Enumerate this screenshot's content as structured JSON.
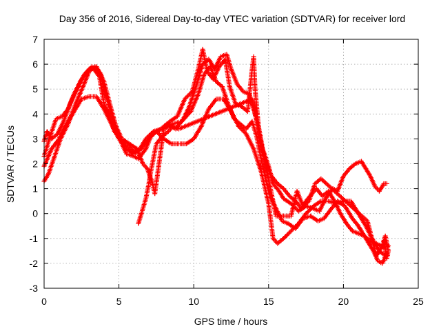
{
  "chart_data": {
    "type": "scatter",
    "title": "Day 356 of 2016, Sidereal Day-to-day VTEC variation (SDTVAR) for receiver lord",
    "xlabel": "GPS time / hours",
    "ylabel": "SDTVAR / TECUs",
    "xlim": [
      0,
      25
    ],
    "ylim": [
      -3,
      7
    ],
    "xticks": [
      0,
      5,
      10,
      15,
      20,
      25
    ],
    "yticks": [
      -3,
      -2,
      -1,
      0,
      1,
      2,
      3,
      4,
      5,
      6,
      7
    ],
    "grid": true,
    "marker": "plus",
    "color": "#ff0000",
    "series": [
      {
        "name": "track-1",
        "points": [
          [
            0.0,
            1.9
          ],
          [
            0.5,
            2.6
          ],
          [
            1.0,
            3.0
          ],
          [
            1.5,
            3.6
          ],
          [
            2.0,
            4.1
          ],
          [
            2.5,
            4.6
          ],
          [
            3.0,
            4.7
          ],
          [
            3.5,
            4.7
          ],
          [
            4.0,
            4.2
          ],
          [
            4.5,
            3.6
          ],
          [
            5.0,
            3.0
          ],
          [
            5.5,
            2.6
          ],
          [
            6.0,
            2.4
          ],
          [
            6.5,
            2.6
          ],
          [
            7.0,
            3.0
          ],
          [
            7.5,
            3.3
          ],
          [
            8.0,
            3.0
          ],
          [
            8.5,
            2.8
          ],
          [
            9.0,
            2.8
          ],
          [
            9.5,
            2.8
          ],
          [
            10.0,
            3.0
          ],
          [
            10.5,
            3.5
          ],
          [
            11.0,
            4.2
          ],
          [
            11.5,
            4.6
          ],
          [
            12.0,
            4.6
          ],
          [
            12.5,
            4.1
          ],
          [
            13.0,
            3.5
          ],
          [
            13.5,
            3.2
          ],
          [
            14.0,
            2.6
          ],
          [
            14.5,
            1.7
          ],
          [
            15.0,
            0.4
          ],
          [
            15.3,
            -1.0
          ],
          [
            15.6,
            -1.2
          ],
          [
            16.0,
            -1.0
          ],
          [
            16.5,
            -0.7
          ],
          [
            17.0,
            -0.4
          ],
          [
            17.5,
            0.0
          ],
          [
            18.0,
            0.3
          ],
          [
            18.5,
            0.5
          ],
          [
            19.0,
            0.5
          ],
          [
            19.5,
            0.4
          ],
          [
            20.0,
            0.5
          ],
          [
            20.5,
            0.5
          ],
          [
            21.0,
            0.0
          ],
          [
            21.5,
            -0.5
          ],
          [
            22.0,
            -1.1
          ],
          [
            22.4,
            -1.5
          ],
          [
            22.8,
            -1.7
          ]
        ]
      },
      {
        "name": "track-2",
        "points": [
          [
            0.0,
            2.3
          ],
          [
            0.4,
            3.1
          ],
          [
            0.8,
            3.8
          ],
          [
            1.2,
            3.9
          ],
          [
            1.6,
            4.2
          ],
          [
            2.0,
            4.8
          ],
          [
            2.5,
            5.4
          ],
          [
            3.0,
            5.8
          ],
          [
            3.5,
            5.9
          ],
          [
            4.0,
            5.3
          ],
          [
            4.3,
            4.6
          ],
          [
            4.8,
            3.5
          ],
          [
            5.2,
            2.8
          ],
          [
            5.5,
            2.4
          ],
          [
            6.0,
            2.3
          ],
          [
            6.3,
            2.2
          ],
          [
            6.8,
            2.6
          ],
          [
            7.2,
            3.2
          ],
          [
            7.8,
            3.4
          ],
          [
            8.2,
            3.6
          ],
          [
            8.8,
            3.4
          ],
          [
            9.3,
            3.8
          ],
          [
            9.7,
            4.3
          ],
          [
            10.2,
            5.2
          ],
          [
            10.6,
            6.0
          ],
          [
            11.0,
            6.2
          ],
          [
            11.4,
            5.8
          ],
          [
            11.8,
            6.3
          ],
          [
            12.2,
            6.4
          ],
          [
            12.5,
            5.8
          ],
          [
            12.9,
            5.2
          ],
          [
            13.3,
            4.9
          ],
          [
            13.7,
            4.8
          ],
          [
            14.0,
            4.2
          ],
          [
            14.3,
            3.6
          ],
          [
            14.6,
            2.6
          ],
          [
            15.0,
            1.9
          ],
          [
            15.3,
            1.2
          ],
          [
            15.7,
            0.9
          ],
          [
            16.0,
            0.6
          ],
          [
            16.5,
            0.4
          ],
          [
            17.0,
            0.1
          ],
          [
            17.5,
            0.3
          ],
          [
            18.0,
            0.2
          ],
          [
            18.4,
            0.1
          ],
          [
            18.8,
            0.6
          ],
          [
            19.3,
            1.0
          ],
          [
            19.6,
            0.9
          ],
          [
            20.0,
            1.5
          ],
          [
            20.4,
            1.8
          ],
          [
            20.8,
            2.0
          ],
          [
            21.2,
            2.1
          ],
          [
            21.5,
            1.8
          ],
          [
            21.8,
            1.5
          ],
          [
            22.1,
            1.1
          ],
          [
            22.4,
            0.9
          ],
          [
            22.7,
            1.2
          ],
          [
            22.9,
            1.2
          ]
        ]
      },
      {
        "name": "track-3",
        "points": [
          [
            0.0,
            1.3
          ],
          [
            0.3,
            1.6
          ],
          [
            0.7,
            2.3
          ],
          [
            1.1,
            3.0
          ],
          [
            1.6,
            3.6
          ],
          [
            2.1,
            4.4
          ],
          [
            2.6,
            5.1
          ],
          [
            3.0,
            5.7
          ],
          [
            3.4,
            5.9
          ],
          [
            3.8,
            5.6
          ],
          [
            4.1,
            4.8
          ],
          [
            4.4,
            4.2
          ],
          [
            4.8,
            3.5
          ],
          [
            5.2,
            3.0
          ],
          [
            5.7,
            2.8
          ],
          [
            6.2,
            2.6
          ],
          [
            6.6,
            2.0
          ],
          [
            6.9,
            1.8
          ],
          [
            7.2,
            1.3
          ],
          [
            7.4,
            0.8
          ],
          [
            8.0,
            3.4
          ],
          [
            8.6,
            3.6
          ],
          [
            9.2,
            3.7
          ],
          [
            9.8,
            4.1
          ],
          [
            10.3,
            4.8
          ],
          [
            10.7,
            5.6
          ],
          [
            11.1,
            5.9
          ],
          [
            11.5,
            5.3
          ],
          [
            11.9,
            5.1
          ],
          [
            12.3,
            4.4
          ],
          [
            12.7,
            3.8
          ],
          [
            13.1,
            3.6
          ],
          [
            13.5,
            3.4
          ],
          [
            13.9,
            3.7
          ],
          [
            14.2,
            3.1
          ],
          [
            14.5,
            2.2
          ],
          [
            14.8,
            1.4
          ],
          [
            15.1,
            0.7
          ],
          [
            15.5,
            0.2
          ],
          [
            15.9,
            -0.3
          ],
          [
            16.3,
            -0.4
          ],
          [
            16.8,
            -0.6
          ],
          [
            17.3,
            -0.2
          ],
          [
            17.8,
            -0.1
          ],
          [
            18.3,
            -0.3
          ],
          [
            18.7,
            -0.2
          ],
          [
            19.2,
            0.2
          ],
          [
            19.6,
            0.5
          ],
          [
            20.1,
            0.3
          ],
          [
            20.6,
            -0.2
          ],
          [
            21.0,
            -0.5
          ],
          [
            21.5,
            -1.0
          ],
          [
            22.0,
            -1.5
          ],
          [
            22.3,
            -1.9
          ],
          [
            22.6,
            -2.0
          ],
          [
            22.9,
            -1.6
          ]
        ]
      },
      {
        "name": "track-4",
        "points": [
          [
            0.0,
            2.9
          ],
          [
            0.2,
            3.3
          ],
          [
            0.5,
            3.0
          ],
          [
            0.9,
            3.2
          ],
          [
            1.3,
            3.7
          ],
          [
            1.8,
            4.5
          ],
          [
            2.2,
            5.0
          ],
          [
            2.7,
            5.6
          ],
          [
            3.2,
            5.9
          ],
          [
            3.7,
            5.5
          ],
          [
            4.0,
            4.4
          ],
          [
            4.3,
            4.0
          ],
          [
            4.7,
            3.3
          ],
          [
            5.1,
            3.0
          ],
          [
            5.6,
            2.7
          ],
          [
            6.0,
            2.5
          ],
          [
            6.4,
            2.6
          ],
          [
            6.8,
            3.0
          ],
          [
            7.3,
            3.3
          ],
          [
            7.9,
            3.4
          ],
          [
            8.4,
            3.7
          ],
          [
            8.9,
            3.9
          ],
          [
            9.4,
            4.6
          ],
          [
            9.9,
            4.9
          ],
          [
            10.3,
            5.8
          ],
          [
            10.6,
            6.6
          ],
          [
            10.9,
            5.7
          ],
          [
            11.3,
            5.4
          ],
          [
            11.7,
            5.9
          ],
          [
            12.1,
            6.2
          ],
          [
            12.4,
            5.1
          ],
          [
            12.8,
            4.4
          ],
          [
            13.2,
            4.3
          ],
          [
            13.6,
            4.1
          ],
          [
            13.9,
            5.8
          ],
          [
            14.0,
            6.3
          ],
          [
            14.1,
            5.0
          ],
          [
            14.4,
            3.0
          ],
          [
            14.8,
            2.1
          ],
          [
            15.2,
            1.5
          ],
          [
            15.6,
            1.2
          ],
          [
            16.0,
            1.0
          ],
          [
            16.4,
            0.7
          ],
          [
            16.8,
            0.5
          ],
          [
            17.2,
            0.2
          ],
          [
            17.5,
            0.5
          ],
          [
            17.9,
            0.8
          ],
          [
            18.2,
            1.0
          ],
          [
            18.6,
            0.7
          ],
          [
            19.0,
            0.9
          ],
          [
            19.4,
            0.5
          ],
          [
            19.8,
            0.0
          ],
          [
            20.2,
            -0.4
          ],
          [
            20.6,
            -0.7
          ],
          [
            21.0,
            -0.8
          ],
          [
            21.4,
            -0.9
          ],
          [
            21.8,
            -1.1
          ],
          [
            22.2,
            -1.2
          ],
          [
            22.5,
            -1.3
          ],
          [
            22.8,
            -1.4
          ]
        ]
      },
      {
        "name": "track-5",
        "points": [
          [
            6.3,
            -0.4
          ],
          [
            6.5,
            0.0
          ],
          [
            6.8,
            0.6
          ],
          [
            7.0,
            1.2
          ],
          [
            7.1,
            1.6
          ],
          [
            7.5,
            2.8
          ],
          [
            7.9,
            3.1
          ],
          [
            8.3,
            3.3
          ],
          [
            8.6,
            3.5
          ],
          [
            9.0,
            3.4
          ],
          [
            13.9,
            4.6
          ],
          [
            14.0,
            4.3
          ],
          [
            15.5,
            -0.1
          ],
          [
            16.5,
            -0.1
          ],
          [
            16.9,
            0.9
          ],
          [
            17.3,
            0.3
          ],
          [
            17.7,
            0.5
          ],
          [
            18.1,
            1.2
          ],
          [
            18.5,
            1.4
          ],
          [
            21.6,
            -0.3
          ],
          [
            22.2,
            -1.7
          ],
          [
            22.6,
            -1.3
          ],
          [
            22.8,
            -0.9
          ],
          [
            23.0,
            -1.5
          ],
          [
            22.9,
            -1.8
          ],
          [
            22.7,
            -1.1
          ],
          [
            23.0,
            -1.3
          ]
        ]
      }
    ]
  }
}
